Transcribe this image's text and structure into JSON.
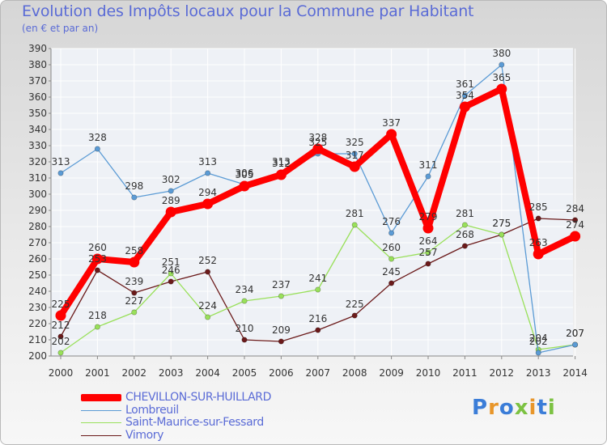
{
  "header": {
    "title": "Evolution des Impôts locaux pour la Commune par Habitant",
    "subtitle": "(en € et par an)"
  },
  "logo": {
    "text": "Proxiti"
  },
  "chart_data": {
    "type": "line",
    "title": "Evolution des Impôts locaux pour la Commune par Habitant",
    "subtitle": "(en € et par an)",
    "xlabel": "",
    "ylabel": "",
    "ylim": [
      200,
      390
    ],
    "yticks": [
      200,
      210,
      220,
      230,
      240,
      250,
      260,
      270,
      280,
      290,
      300,
      310,
      320,
      330,
      340,
      350,
      360,
      370,
      380,
      390
    ],
    "categories": [
      "2000",
      "2001",
      "2002",
      "2003",
      "2004",
      "2005",
      "2006",
      "2007",
      "2008",
      "2009",
      "2010",
      "2011",
      "2012",
      "2013",
      "2014"
    ],
    "grid": true,
    "legend_position": "bottom-left",
    "series": [
      {
        "name": "CHEVILLON-SUR-HUILLARD",
        "color": "#ff0000",
        "values": [
          225,
          260,
          258,
          289,
          294,
          305,
          312,
          328,
          317,
          337,
          279,
          354,
          365,
          263,
          274
        ]
      },
      {
        "name": "Lombreuil",
        "color": "#5b9bd5",
        "values": [
          313,
          328,
          298,
          302,
          313,
          306,
          313,
          325,
          325,
          276,
          311,
          361,
          380,
          202,
          207
        ]
      },
      {
        "name": "Saint-Maurice-sur-Fessard",
        "color": "#99e05a",
        "values": [
          202,
          218,
          227,
          251,
          224,
          234,
          237,
          241,
          281,
          260,
          264,
          281,
          275,
          204,
          207
        ]
      },
      {
        "name": "Vimory",
        "color": "#6b1a1a",
        "values": [
          212,
          253,
          239,
          246,
          252,
          210,
          209,
          216,
          225,
          245,
          257,
          268,
          275,
          285,
          284
        ]
      }
    ]
  }
}
